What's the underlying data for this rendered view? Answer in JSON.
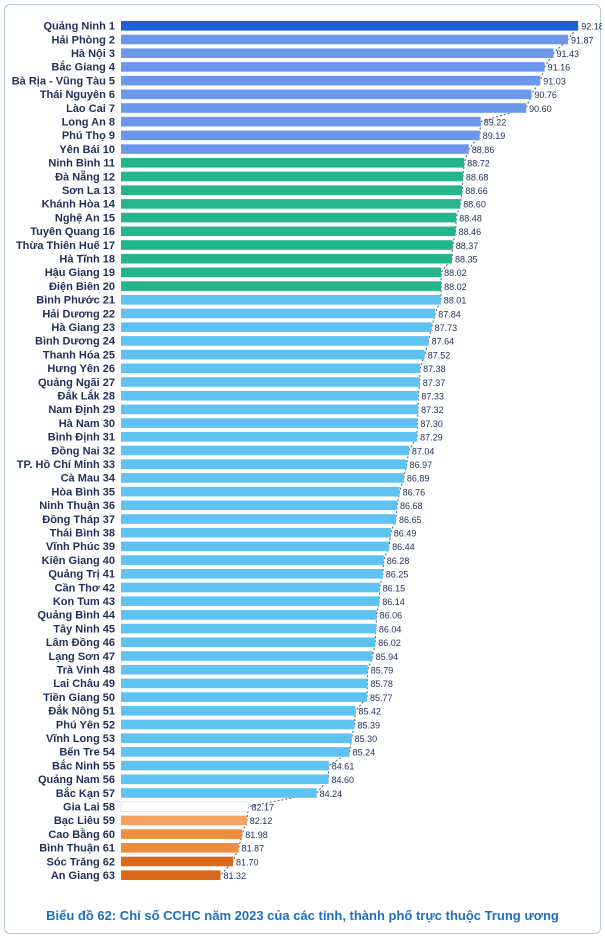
{
  "chart_data": {
    "type": "bar",
    "orientation": "horizontal",
    "title": "Biểu đồ 62: Chỉ số CCHC năm 2023 của các tỉnh, thành phố trực thuộc Trung ương",
    "xlim": [
      78.3,
      92.6
    ],
    "categories": [
      "Quảng Ninh  1",
      "Hải Phòng  2",
      "Hà Nội  3",
      "Bắc Giang  4",
      "Bà Rịa - Vũng Tàu  5",
      "Thái Nguyên  6",
      "Lào Cai  7",
      "Long An  8",
      "Phú Thọ  9",
      "Yên Bái 10",
      "Ninh Bình 11",
      "Đà Nẵng 12",
      "Sơn La 13",
      "Khánh Hòa 14",
      "Nghệ An 15",
      "Tuyên Quang 16",
      "Thừa Thiên Huế 17",
      "Hà Tĩnh 18",
      "Hậu Giang 19",
      "Điện Biên 20",
      "Bình Phước 21",
      "Hải Dương 22",
      "Hà Giang 23",
      "Bình Dương 24",
      "Thanh Hóa 25",
      "Hưng Yên 26",
      "Quảng Ngãi 27",
      "Đắk Lắk 28",
      "Nam Định 29",
      "Hà Nam 30",
      "Bình Định 31",
      "Đồng Nai 32",
      "TP. Hồ Chí Minh 33",
      "Cà Mau 34",
      "Hòa Bình 35",
      "Ninh Thuận 36",
      "Đồng Tháp 37",
      "Thái Bình 38",
      "Vĩnh Phúc 39",
      "Kiên Giang 40",
      "Quảng Trị 41",
      "Cần Thơ 42",
      "Kon Tum 43",
      "Quảng Bình 44",
      "Tây Ninh 45",
      "Lâm Đồng 46",
      "Lạng Sơn 47",
      "Trà Vinh 48",
      "Lai Châu 49",
      "Tiền Giang 50",
      "Đắk Nông 51",
      "Phú Yên 52",
      "Vĩnh Long 53",
      "Bến Tre 54",
      "Bắc Ninh 55",
      "Quảng Nam 56",
      "Bắc Kạn 57",
      "Gia Lai 58",
      "Bạc Liêu 59",
      "Cao Bằng 60",
      "Bình Thuận 61",
      "Sóc Trăng 62",
      "An Giang 63"
    ],
    "values": [
      92.18,
      91.87,
      91.43,
      91.16,
      91.03,
      90.76,
      90.6,
      89.22,
      89.19,
      88.86,
      88.72,
      88.68,
      88.66,
      88.6,
      88.48,
      88.46,
      88.37,
      88.35,
      88.02,
      88.02,
      88.01,
      87.84,
      87.73,
      87.64,
      87.52,
      87.38,
      87.37,
      87.33,
      87.32,
      87.3,
      87.29,
      87.04,
      86.97,
      86.89,
      86.76,
      86.68,
      86.65,
      86.49,
      86.44,
      86.28,
      86.25,
      86.15,
      86.14,
      86.06,
      86.04,
      86.02,
      85.94,
      85.79,
      85.78,
      85.77,
      85.42,
      85.39,
      85.3,
      85.24,
      84.61,
      84.6,
      84.24,
      82.17,
      82.12,
      81.98,
      81.87,
      81.7,
      81.32
    ],
    "value_labels": [
      "92.18",
      "91.87",
      "91.43",
      "91.16",
      "91.03",
      "90.76",
      "90.60",
      "89.22",
      "89.19",
      "88.86",
      "88.72",
      "88.68",
      "88.66",
      "88.60",
      "88.48",
      "88.46",
      "88.37",
      "88.35",
      "88.02",
      "88.02",
      "88.01",
      "87.84",
      "87.73",
      "87.64",
      "87.52",
      "87.38",
      "87.37",
      "87.33",
      "87.32",
      "87.30",
      "87.29",
      "87.04",
      "86.97",
      "86.89",
      "86.76",
      "86.68",
      "86.65",
      "86.49",
      "86.44",
      "86.28",
      "86.25",
      "86.15",
      "86.14",
      "86.06",
      "86.04",
      "86.02",
      "85.94",
      "85.79",
      "85.78",
      "85.77",
      "85.42",
      "85.39",
      "85.30",
      "85.24",
      "84.61",
      "84.60",
      "84.24",
      "82.17",
      "82.12",
      "81.98",
      "81.87",
      "81.70",
      "81.32"
    ],
    "groups": [
      {
        "range": [
          1,
          1
        ],
        "color": "#1e5fd6"
      },
      {
        "range": [
          2,
          10
        ],
        "color": "#6b98ec"
      },
      {
        "range": [
          11,
          20
        ],
        "color": "#24b58a"
      },
      {
        "range": [
          21,
          57
        ],
        "color": "#5ec2f3"
      },
      {
        "range": [
          58,
          58
        ],
        "color": "#ffffff"
      },
      {
        "range": [
          59,
          59
        ],
        "color": "#f6a361"
      },
      {
        "range": [
          60,
          61
        ],
        "color": "#ee8d3b"
      },
      {
        "range": [
          62,
          63
        ],
        "color": "#dc6718"
      }
    ]
  }
}
